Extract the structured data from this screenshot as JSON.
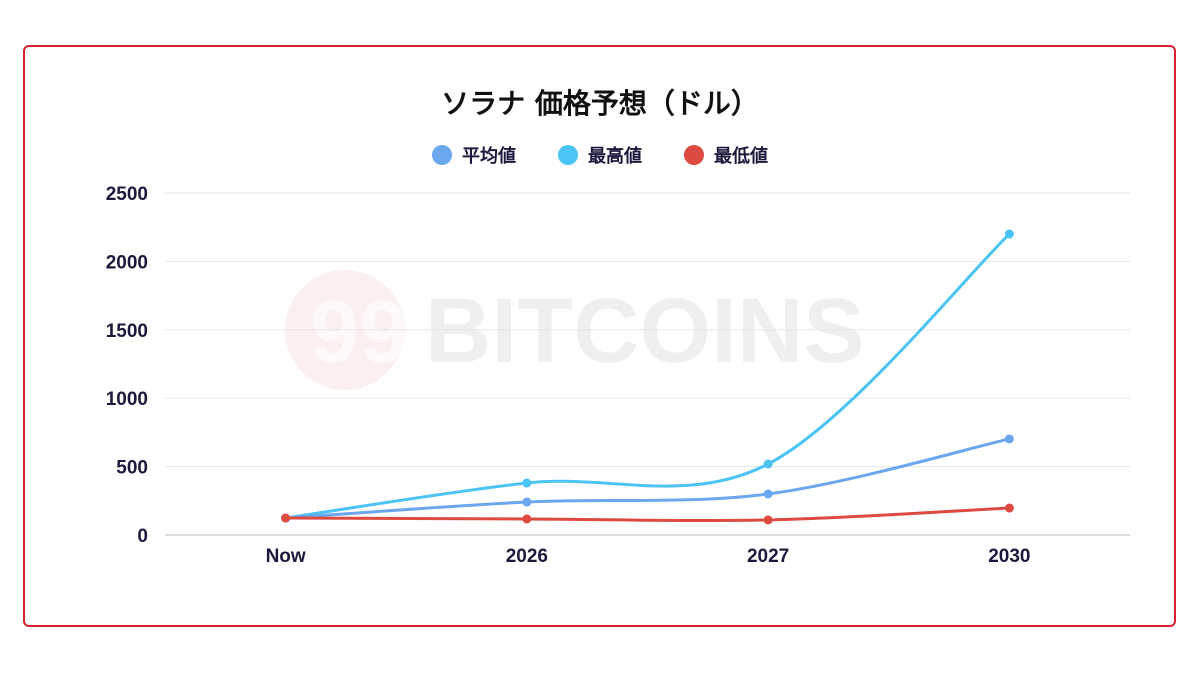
{
  "chart_data": {
    "type": "line",
    "title": "ソラナ 価格予想（ドル）",
    "categories": [
      "Now",
      "2026",
      "2027",
      "2030"
    ],
    "series": [
      {
        "name": "平均値",
        "color": "#6aa7ee",
        "values": [
          124,
          241,
          300,
          702
        ]
      },
      {
        "name": "最高値",
        "color": "#4cc3f5",
        "values": [
          124,
          380,
          519,
          2200
        ]
      },
      {
        "name": "最低値",
        "color": "#dd4b40",
        "values": [
          124,
          117,
          110,
          197
        ]
      }
    ],
    "yticks": [
      "0",
      "500",
      "1000",
      "1500",
      "2000",
      "2500"
    ],
    "ylim": [
      0,
      2500
    ],
    "grid": true,
    "legend": "top",
    "smooth": true
  },
  "watermark": {
    "text": "99 BITCOINS",
    "color": "#d5202f"
  },
  "frame_color": "#d5202f"
}
